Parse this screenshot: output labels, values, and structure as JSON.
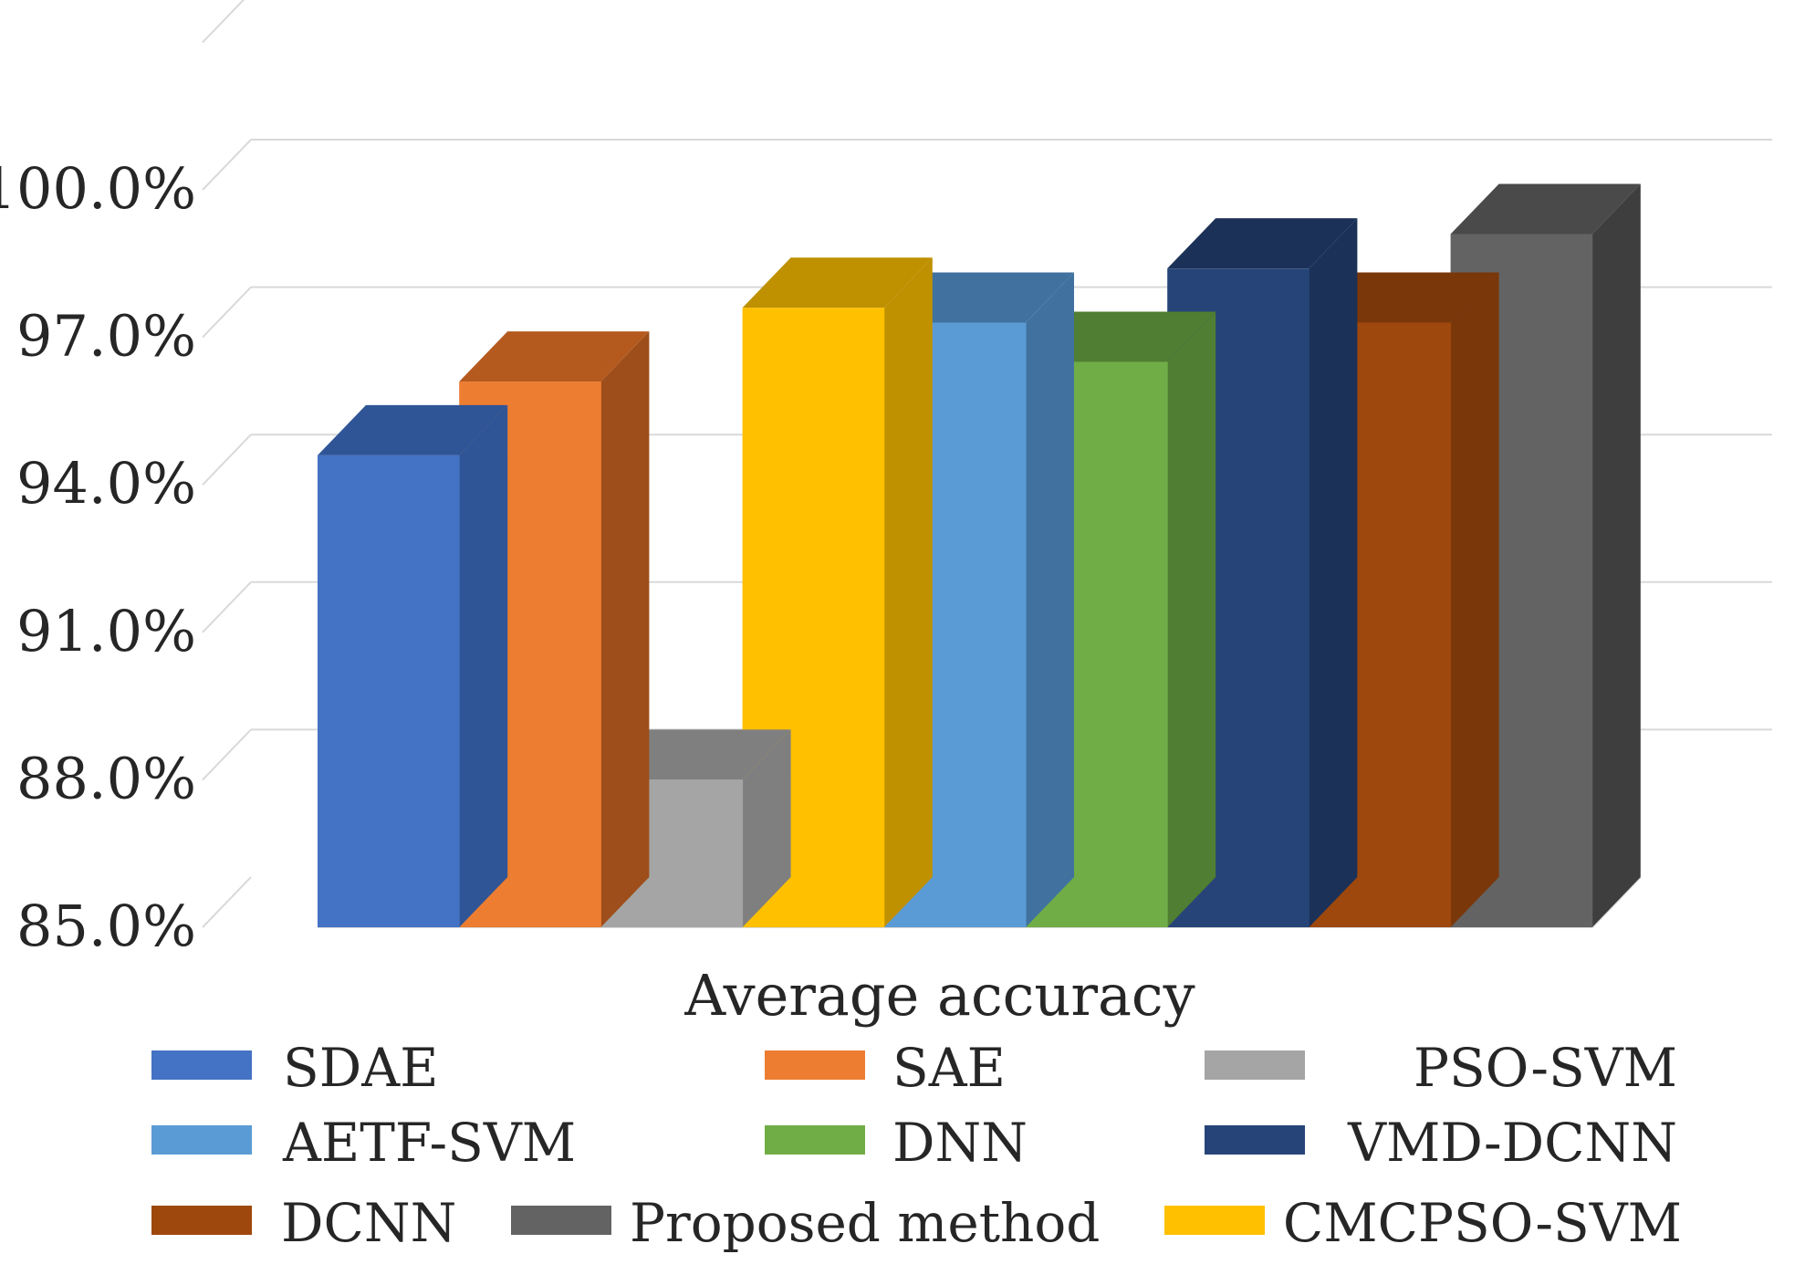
{
  "chart_data": {
    "type": "bar",
    "style": "3d-clustered-column",
    "categories": [
      "Average accuracy"
    ],
    "series": [
      {
        "name": "SDAE",
        "values": [
          94.6
        ],
        "color": "#4472C4",
        "top": "#2F5597",
        "side": "#2F5597"
      },
      {
        "name": "SAE",
        "values": [
          96.1
        ],
        "color": "#ED7D31",
        "top": "#B55A1F",
        "side": "#9E4E1B"
      },
      {
        "name": "PSO-SVM",
        "values": [
          88.0
        ],
        "color": "#A5A5A5",
        "top": "#7F7F7F",
        "side": "#7F7F7F"
      },
      {
        "name": "CMCPSO-SVM",
        "values": [
          97.6
        ],
        "color": "#FFC000",
        "top": "#BF9000",
        "side": "#BF9000"
      },
      {
        "name": "AETF-SVM",
        "values": [
          97.3
        ],
        "color": "#5B9BD5",
        "top": "#41729F",
        "side": "#41729F"
      },
      {
        "name": "DNN",
        "values": [
          96.5
        ],
        "color": "#70AD47",
        "top": "#507E32",
        "side": "#507E32"
      },
      {
        "name": "VMD-DCNN",
        "values": [
          98.4
        ],
        "color": "#264478",
        "top": "#1B3157",
        "side": "#1B3157"
      },
      {
        "name": "DCNN",
        "values": [
          97.3
        ],
        "color": "#9E480E",
        "top": "#7A370A",
        "side": "#7A370A"
      },
      {
        "name": "Proposed method",
        "values": [
          99.1
        ],
        "color": "#636363",
        "top": "#4A4A4A",
        "side": "#3E3E3E"
      }
    ],
    "legend_order": [
      [
        "SDAE",
        "SAE",
        "PSO-SVM"
      ],
      [
        "AETF-SVM",
        "DNN",
        "VMD-DCNN"
      ],
      [
        "DCNN",
        "Proposed method",
        "CMCPSO-SVM"
      ]
    ],
    "yticks": [
      "85.0%",
      "88.0%",
      "91.0%",
      "94.0%",
      "97.0%",
      "100.0%"
    ],
    "ytick_values": [
      85,
      88,
      91,
      94,
      97,
      100
    ],
    "ylim": [
      85,
      100
    ],
    "grid": true,
    "legend_position": "bottom",
    "gridline_color": "#D9D9D9"
  }
}
